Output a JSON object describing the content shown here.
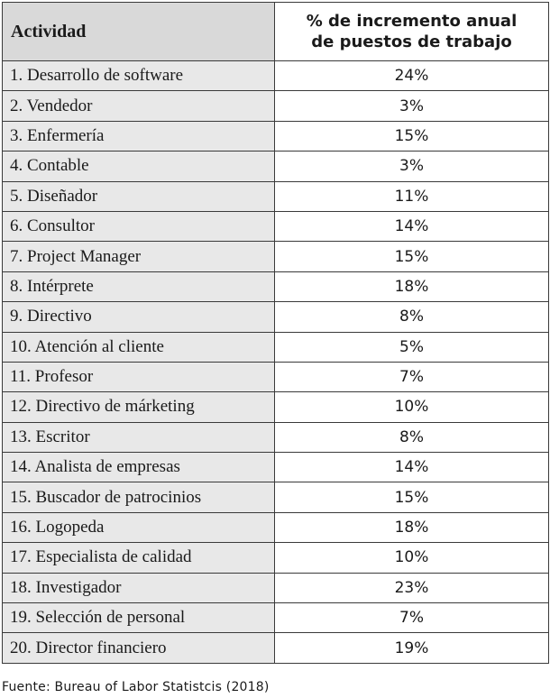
{
  "table": {
    "headers": {
      "activity": "Actividad",
      "increase_line1": "% de incremento anual",
      "increase_line2": "de puestos de trabajo"
    },
    "rows": [
      {
        "activity": "1. Desarrollo de software",
        "increase": "24%"
      },
      {
        "activity": "2. Vendedor",
        "increase": "3%"
      },
      {
        "activity": "3. Enfermería",
        "increase": "15%"
      },
      {
        "activity": "4. Contable",
        "increase": "3%"
      },
      {
        "activity": "5. Diseñador",
        "increase": "11%"
      },
      {
        "activity": "6. Consultor",
        "increase": "14%"
      },
      {
        "activity": "7. Project Manager",
        "increase": "15%"
      },
      {
        "activity": "8. Intérprete",
        "increase": "18%"
      },
      {
        "activity": "9. Directivo",
        "increase": "8%"
      },
      {
        "activity": "10. Atención al cliente",
        "increase": "5%"
      },
      {
        "activity": "11. Profesor",
        "increase": "7%"
      },
      {
        "activity": "12. Directivo de márketing",
        "increase": "10%"
      },
      {
        "activity": "13. Escritor",
        "increase": "8%"
      },
      {
        "activity": "14. Analista de empresas",
        "increase": "14%"
      },
      {
        "activity": "15. Buscador de patrocinios",
        "increase": "15%"
      },
      {
        "activity": "16. Logopeda",
        "increase": "18%"
      },
      {
        "activity": "17. Especialista de calidad",
        "increase": "10%"
      },
      {
        "activity": "18. Investigador",
        "increase": "23%"
      },
      {
        "activity": "19. Selección de personal",
        "increase": "7%"
      },
      {
        "activity": "20. Director financiero",
        "increase": "19%"
      }
    ]
  },
  "source": "Fuente: Bureau of Labor Statistcis (2018)"
}
